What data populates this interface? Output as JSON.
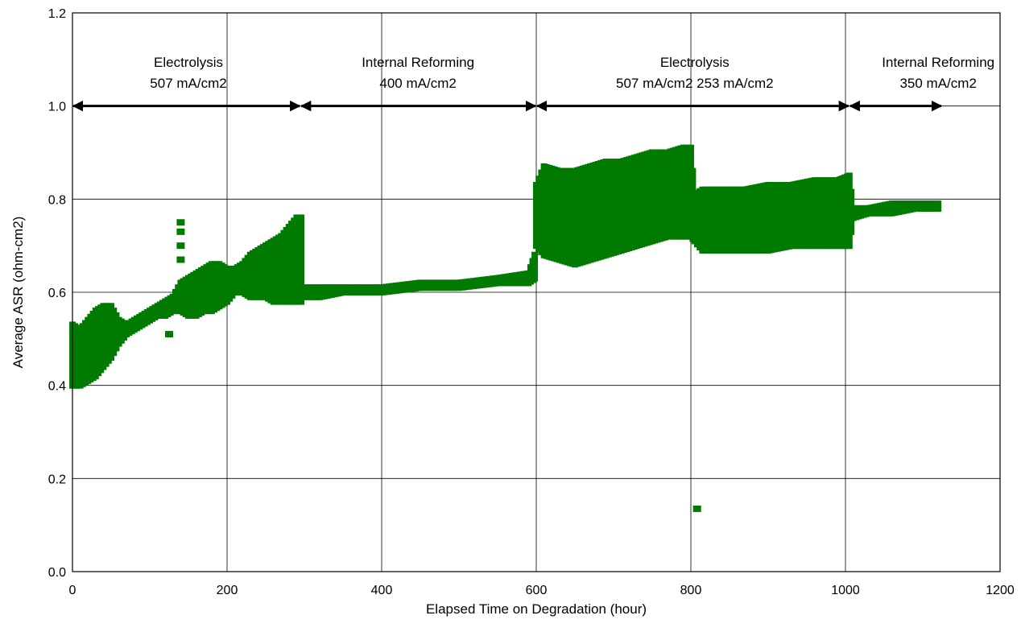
{
  "chart_data": {
    "type": "scatter",
    "title": "",
    "xlabel": "Elapsed Time on Degradation (hour)",
    "ylabel": "Average ASR (ohm-cm2)",
    "xlim": [
      0,
      1200
    ],
    "ylim": [
      0,
      1.2
    ],
    "xticks": [
      0,
      200,
      400,
      600,
      800,
      1000,
      1200
    ],
    "xtick_labels": [
      "0",
      "200",
      "400",
      "600",
      "800",
      "1000",
      "1200"
    ],
    "yticks": [
      0,
      0.2,
      0.4,
      0.6,
      0.8,
      1.0,
      1.2
    ],
    "ytick_labels": [
      "0.0",
      "0.2",
      "0.4",
      "0.6",
      "0.8",
      "1.0",
      "1.2"
    ],
    "grid": true,
    "series_color": "#007a00",
    "series": [
      {
        "name": "",
        "bands": [
          [
            0,
            0.4,
            0.53
          ],
          [
            10,
            0.4,
            0.52
          ],
          [
            20,
            0.41,
            0.54
          ],
          [
            30,
            0.42,
            0.56
          ],
          [
            40,
            0.44,
            0.57
          ],
          [
            50,
            0.46,
            0.57
          ],
          [
            60,
            0.49,
            0.54
          ],
          [
            70,
            0.51,
            0.53
          ],
          [
            80,
            0.52,
            0.54
          ],
          [
            90,
            0.53,
            0.55
          ],
          [
            100,
            0.54,
            0.56
          ],
          [
            110,
            0.55,
            0.57
          ],
          [
            120,
            0.55,
            0.58
          ],
          [
            130,
            0.56,
            0.59
          ],
          [
            140,
            0.56,
            0.62
          ],
          [
            150,
            0.55,
            0.63
          ],
          [
            160,
            0.55,
            0.64
          ],
          [
            170,
            0.56,
            0.65
          ],
          [
            180,
            0.56,
            0.66
          ],
          [
            190,
            0.57,
            0.66
          ],
          [
            200,
            0.58,
            0.65
          ],
          [
            210,
            0.6,
            0.65
          ],
          [
            220,
            0.6,
            0.66
          ],
          [
            230,
            0.59,
            0.68
          ],
          [
            240,
            0.59,
            0.69
          ],
          [
            250,
            0.59,
            0.7
          ],
          [
            260,
            0.58,
            0.71
          ],
          [
            270,
            0.58,
            0.72
          ],
          [
            280,
            0.58,
            0.74
          ],
          [
            290,
            0.58,
            0.76
          ],
          [
            296,
            0.58,
            0.76
          ],
          [
            300,
            0.59,
            0.61
          ],
          [
            320,
            0.59,
            0.61
          ],
          [
            350,
            0.6,
            0.61
          ],
          [
            400,
            0.6,
            0.61
          ],
          [
            450,
            0.61,
            0.62
          ],
          [
            500,
            0.61,
            0.62
          ],
          [
            550,
            0.62,
            0.63
          ],
          [
            590,
            0.62,
            0.64
          ],
          [
            598,
            0.63,
            0.68
          ],
          [
            600,
            0.7,
            0.83
          ],
          [
            610,
            0.68,
            0.87
          ],
          [
            630,
            0.67,
            0.86
          ],
          [
            650,
            0.66,
            0.86
          ],
          [
            670,
            0.67,
            0.87
          ],
          [
            690,
            0.68,
            0.88
          ],
          [
            710,
            0.69,
            0.88
          ],
          [
            730,
            0.7,
            0.89
          ],
          [
            750,
            0.71,
            0.9
          ],
          [
            770,
            0.72,
            0.9
          ],
          [
            790,
            0.72,
            0.91
          ],
          [
            800,
            0.72,
            0.91
          ],
          [
            805,
            0.71,
            0.81
          ],
          [
            815,
            0.69,
            0.82
          ],
          [
            840,
            0.69,
            0.82
          ],
          [
            870,
            0.69,
            0.82
          ],
          [
            900,
            0.69,
            0.83
          ],
          [
            930,
            0.7,
            0.83
          ],
          [
            960,
            0.7,
            0.84
          ],
          [
            990,
            0.7,
            0.84
          ],
          [
            1005,
            0.7,
            0.85
          ],
          [
            1010,
            0.76,
            0.78
          ],
          [
            1030,
            0.77,
            0.78
          ],
          [
            1060,
            0.77,
            0.79
          ],
          [
            1090,
            0.78,
            0.79
          ],
          [
            1120,
            0.78,
            0.79
          ]
        ],
        "outliers": [
          [
            140,
            0.75
          ],
          [
            140,
            0.73
          ],
          [
            140,
            0.7
          ],
          [
            140,
            0.67
          ],
          [
            125,
            0.51
          ],
          [
            808,
            0.135
          ]
        ]
      }
    ],
    "annotations": [
      {
        "lines": [
          "Electrolysis",
          "507 mA/cm2"
        ],
        "x_center": 150,
        "arrow_from": 0,
        "arrow_to": 295,
        "arrow_y": 1.0
      },
      {
        "lines": [
          "Internal Reforming",
          "400 mA/cm2"
        ],
        "x_center": 447,
        "arrow_from": 295,
        "arrow_to": 600,
        "arrow_y": 1.0
      },
      {
        "lines": [
          "Electrolysis",
          "507 mA/cm2    253 mA/cm2"
        ],
        "x_center": 805,
        "arrow_from": 600,
        "arrow_to": 1005,
        "arrow_y": 1.0
      },
      {
        "lines": [
          "Internal Reforming",
          "350 mA/cm2"
        ],
        "x_center": 1120,
        "arrow_from": 1005,
        "arrow_to": 1125,
        "arrow_y": 1.0
      }
    ]
  }
}
